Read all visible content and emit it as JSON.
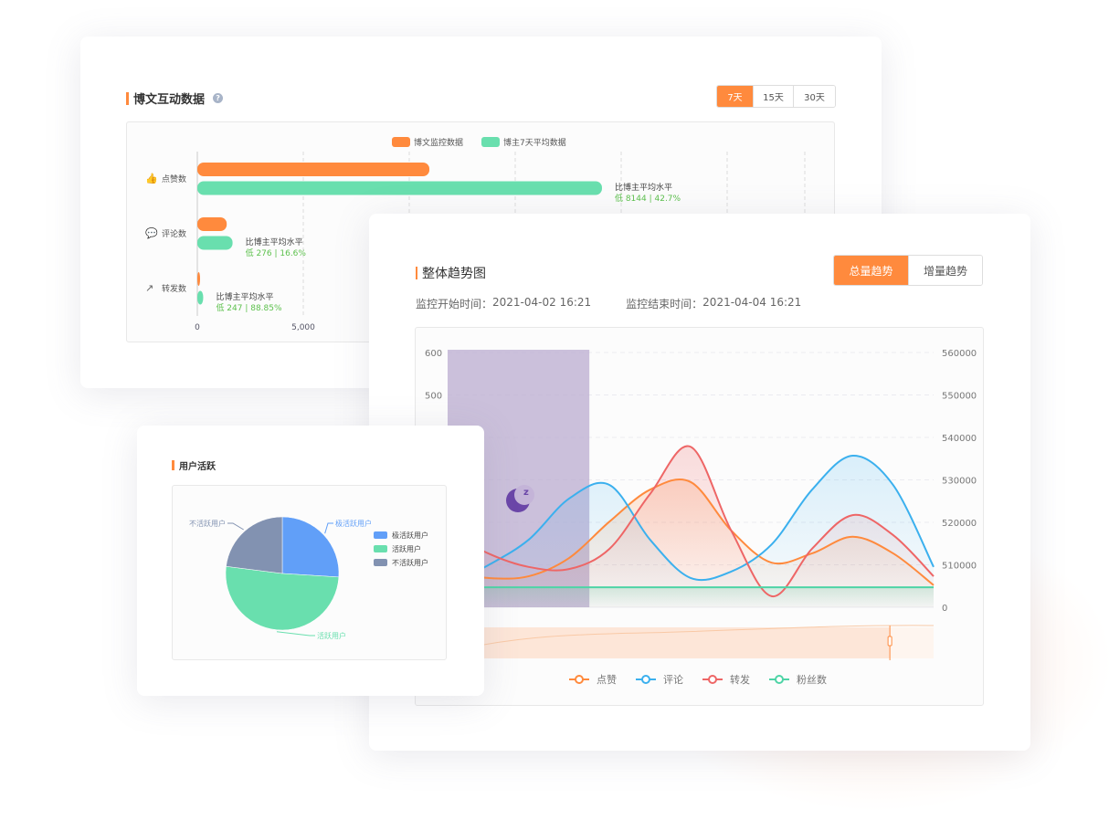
{
  "interaction_card": {
    "title": "博文互动数据",
    "help_icon": "question-circle-icon",
    "ranges": [
      "7天",
      "15天",
      "30天"
    ],
    "active_range": "7天",
    "legend": [
      {
        "label": "博文监控数据",
        "color": "#ff8a3d"
      },
      {
        "label": "博主7天平均数据",
        "color": "#69dfae"
      }
    ],
    "chart_data": {
      "type": "bar",
      "orientation": "horizontal",
      "categories": [
        "点赞数",
        "评论数",
        "转发数"
      ],
      "category_icons": [
        "thumbs-up-icon",
        "comment-icon",
        "share-icon"
      ],
      "series": [
        {
          "name": "博文监控数据",
          "values": [
            10950,
            1387,
            31
          ]
        },
        {
          "name": "博主7天平均数据",
          "values": [
            19094,
            1663,
            278
          ]
        }
      ],
      "x_ticks": [
        "0",
        "5,000"
      ],
      "annotations": [
        {
          "label": "比博主平均水平",
          "value": "低 8144 | 42.7%"
        },
        {
          "label": "比博主平均水平",
          "value": "低 276 | 16.6%"
        },
        {
          "label": "比博主平均水平",
          "value": "低 247 | 88.85%"
        }
      ],
      "grid": true
    }
  },
  "trend_card": {
    "title": "整体趋势图",
    "tabs": [
      "总量趋势",
      "增量趋势"
    ],
    "active_tab": "总量趋势",
    "start_label": "监控开始时间：",
    "start_time": "2021-04-02 16:21",
    "end_label": "监控结束时间：",
    "end_time": "2021-04-04 16:21",
    "chart_data": {
      "type": "line",
      "left_ticks": [
        "600",
        "500"
      ],
      "left_range": [
        0,
        600
      ],
      "right_ticks": [
        "560000",
        "550000",
        "540000",
        "530000",
        "520000",
        "510000",
        "0"
      ],
      "x": [
        0,
        1,
        2,
        3,
        4,
        5,
        6,
        7,
        8,
        9,
        10,
        11,
        12
      ],
      "series": [
        {
          "name": "点赞",
          "color": "#ff8a3d",
          "values": [
            84,
            69,
            73,
            116,
            202,
            277,
            295,
            181,
            105,
            127,
            166,
            127,
            52
          ]
        },
        {
          "name": "评论",
          "color": "#3bb0ee",
          "values": [
            52,
            99,
            159,
            256,
            288,
            159,
            69,
            84,
            148,
            277,
            357,
            288,
            95
          ]
        },
        {
          "name": "转发",
          "color": "#ee6666",
          "values": [
            181,
            127,
            95,
            90,
            138,
            267,
            378,
            181,
            26,
            138,
            217,
            170,
            73
          ]
        },
        {
          "name": "粉丝数",
          "color": "#4ed4a6",
          "values": [
            47,
            47,
            47,
            47,
            47,
            47,
            47,
            47,
            47,
            47,
            47,
            47,
            47
          ]
        }
      ],
      "sleep_band_x": [
        0,
        3.5
      ],
      "sleep_icon": "moon-sleep-icon",
      "data_zoom_end": 0.91,
      "grid": true,
      "legend_placement": "bottom"
    }
  },
  "activity_card": {
    "title": "用户活跃",
    "chart_data": {
      "type": "pie",
      "slices": [
        {
          "label": "极活跃用户",
          "value": 26,
          "color": "#619ff8"
        },
        {
          "label": "活跃用户",
          "value": 51,
          "color": "#69dfae"
        },
        {
          "label": "不活跃用户",
          "value": 23,
          "color": "#8292b1"
        }
      ],
      "legend_placement": "right"
    }
  }
}
